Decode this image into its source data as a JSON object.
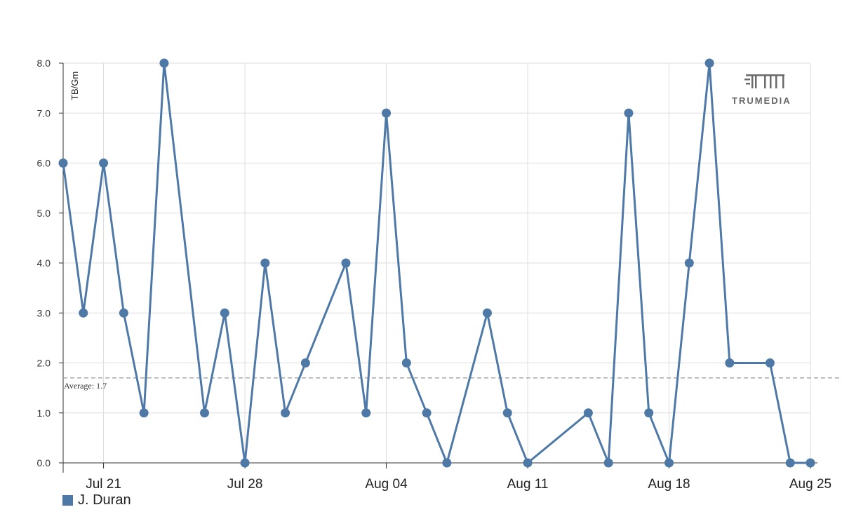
{
  "chart_data": {
    "type": "line",
    "x_type": "date",
    "ylabel": "TB/Gm",
    "ylim": [
      0,
      8
    ],
    "yticks": [
      "0.0",
      "1.0",
      "2.0",
      "3.0",
      "4.0",
      "5.0",
      "6.0",
      "7.0",
      "8.0"
    ],
    "xlim": [
      "2024-07-19",
      "2024-08-25"
    ],
    "xticks": [
      {
        "date": "2024-07-21",
        "label": "Jul 21"
      },
      {
        "date": "2024-07-28",
        "label": "Jul 28"
      },
      {
        "date": "2024-08-04",
        "label": "Aug 04"
      },
      {
        "date": "2024-08-11",
        "label": "Aug 11"
      },
      {
        "date": "2024-08-18",
        "label": "Aug 18"
      },
      {
        "date": "2024-08-25",
        "label": "Aug 25"
      }
    ],
    "grid": true,
    "legend_position": "bottom-left",
    "series": [
      {
        "name": "J. Duran",
        "color": "#4e79a7",
        "points": [
          {
            "x": "2024-07-19",
            "y": 6
          },
          {
            "x": "2024-07-20",
            "y": 3
          },
          {
            "x": "2024-07-21",
            "y": 6
          },
          {
            "x": "2024-07-22",
            "y": 3
          },
          {
            "x": "2024-07-23",
            "y": 1
          },
          {
            "x": "2024-07-24",
            "y": 8
          },
          {
            "x": "2024-07-26",
            "y": 1
          },
          {
            "x": "2024-07-27",
            "y": 3
          },
          {
            "x": "2024-07-28",
            "y": 0
          },
          {
            "x": "2024-07-29",
            "y": 4
          },
          {
            "x": "2024-07-30",
            "y": 1
          },
          {
            "x": "2024-07-31",
            "y": 2
          },
          {
            "x": "2024-08-02",
            "y": 4
          },
          {
            "x": "2024-08-03",
            "y": 1
          },
          {
            "x": "2024-08-04",
            "y": 7
          },
          {
            "x": "2024-08-05",
            "y": 2
          },
          {
            "x": "2024-08-06",
            "y": 1
          },
          {
            "x": "2024-08-07",
            "y": 0
          },
          {
            "x": "2024-08-09",
            "y": 3
          },
          {
            "x": "2024-08-10",
            "y": 1
          },
          {
            "x": "2024-08-11",
            "y": 0
          },
          {
            "x": "2024-08-14",
            "y": 1
          },
          {
            "x": "2024-08-15",
            "y": 0
          },
          {
            "x": "2024-08-16",
            "y": 7
          },
          {
            "x": "2024-08-17",
            "y": 1
          },
          {
            "x": "2024-08-18",
            "y": 0
          },
          {
            "x": "2024-08-19",
            "y": 4
          },
          {
            "x": "2024-08-20",
            "y": 8
          },
          {
            "x": "2024-08-21",
            "y": 2
          },
          {
            "x": "2024-08-23",
            "y": 2
          },
          {
            "x": "2024-08-24",
            "y": 0
          },
          {
            "x": "2024-08-25",
            "y": 0
          }
        ]
      }
    ],
    "average": {
      "value": 1.7,
      "label": "Average: 1.7",
      "color": "#999999"
    }
  },
  "brand": {
    "name": "TRUMEDIA",
    "color": "#666666"
  }
}
